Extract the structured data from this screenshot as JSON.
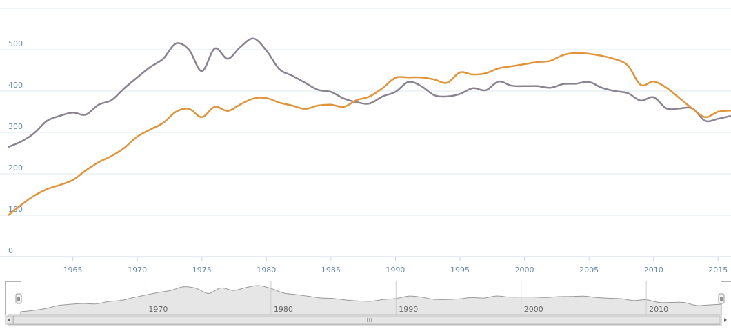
{
  "chart_data": {
    "type": "line",
    "x": [
      1960,
      1961,
      1962,
      1963,
      1964,
      1965,
      1966,
      1967,
      1968,
      1969,
      1970,
      1971,
      1972,
      1973,
      1974,
      1975,
      1976,
      1977,
      1978,
      1979,
      1980,
      1981,
      1982,
      1983,
      1984,
      1985,
      1986,
      1987,
      1988,
      1989,
      1990,
      1991,
      1992,
      1993,
      1994,
      1995,
      1996,
      1997,
      1998,
      1999,
      2000,
      2001,
      2002,
      2003,
      2004,
      2005,
      2006,
      2007,
      2008,
      2009,
      2010,
      2011,
      2012,
      2013,
      2014,
      2015,
      2016
    ],
    "series": [
      {
        "color": "#8b8290",
        "values": [
          265,
          278,
          298,
          328,
          340,
          348,
          343,
          367,
          378,
          407,
          433,
          458,
          478,
          515,
          500,
          448,
          503,
          478,
          507,
          527,
          498,
          453,
          437,
          420,
          403,
          398,
          382,
          373,
          370,
          387,
          398,
          422,
          412,
          390,
          387,
          393,
          407,
          402,
          423,
          413,
          412,
          412,
          408,
          417,
          418,
          422,
          408,
          400,
          395,
          377,
          385,
          358,
          358,
          358,
          328,
          333,
          340
        ]
      },
      {
        "color": "#e0943c",
        "values": [
          100,
          125,
          147,
          163,
          173,
          185,
          208,
          228,
          243,
          263,
          290,
          307,
          323,
          350,
          357,
          337,
          362,
          352,
          368,
          382,
          383,
          372,
          365,
          357,
          365,
          367,
          362,
          378,
          387,
          407,
          432,
          433,
          433,
          428,
          420,
          445,
          440,
          443,
          455,
          460,
          465,
          470,
          473,
          487,
          492,
          490,
          485,
          477,
          462,
          415,
          423,
          408,
          383,
          358,
          337,
          350,
          353
        ]
      }
    ],
    "xlim": [
      1960,
      2016
    ],
    "xticks": [
      1965,
      1970,
      1975,
      1980,
      1985,
      1990,
      1995,
      2000,
      2005,
      2010,
      2015
    ],
    "ylim": [
      0,
      600
    ],
    "yticks": [
      0,
      100,
      200,
      300,
      400,
      500
    ],
    "grid": true,
    "navigator": {
      "xticks": [
        1970,
        1980,
        1990,
        2000,
        2010
      ]
    }
  }
}
